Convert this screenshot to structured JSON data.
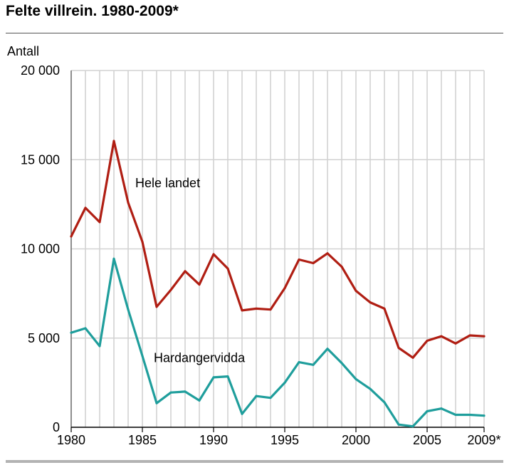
{
  "chart_data": {
    "type": "line",
    "title": "Felte villrein. 1980-2009*",
    "ylabel": "Antall",
    "xlabel": "",
    "ylim": [
      0,
      20000
    ],
    "xlim": [
      1980,
      2009
    ],
    "y_ticks": [
      {
        "value": 0,
        "label": "0"
      },
      {
        "value": 5000,
        "label": "5 000"
      },
      {
        "value": 10000,
        "label": "10 000"
      },
      {
        "value": 15000,
        "label": "15 000"
      },
      {
        "value": 20000,
        "label": "20 000"
      }
    ],
    "x_ticks": [
      {
        "value": 1980,
        "label": "1980"
      },
      {
        "value": 1985,
        "label": "1985"
      },
      {
        "value": 1990,
        "label": "1990"
      },
      {
        "value": 1995,
        "label": "1995"
      },
      {
        "value": 2000,
        "label": "2000"
      },
      {
        "value": 2005,
        "label": "2005"
      },
      {
        "value": 2009,
        "label": "2009*"
      }
    ],
    "grid": true,
    "x": [
      1980,
      1981,
      1982,
      1983,
      1984,
      1985,
      1986,
      1987,
      1988,
      1989,
      1990,
      1991,
      1992,
      1993,
      1994,
      1995,
      1996,
      1997,
      1998,
      1999,
      2000,
      2001,
      2002,
      2003,
      2004,
      2005,
      2006,
      2007,
      2008,
      2009
    ],
    "series": [
      {
        "name": "Hele landet",
        "color": "#b01e13",
        "label_at": {
          "x": 1984.5,
          "y": 13450
        },
        "values": [
          10700,
          12300,
          11500,
          16050,
          12600,
          10400,
          6750,
          7700,
          8750,
          8000,
          9700,
          8900,
          6550,
          6650,
          6600,
          7800,
          9400,
          9200,
          9750,
          9000,
          7650,
          7000,
          6650,
          4450,
          3900,
          4850,
          5100,
          4700,
          5150,
          5100
        ]
      },
      {
        "name": "Hardangervidda",
        "color": "#1f9e9c",
        "label_at": {
          "x": 1985.8,
          "y": 3650
        },
        "values": [
          5300,
          5550,
          4550,
          9450,
          6600,
          4000,
          1350,
          1950,
          2000,
          1500,
          2800,
          2850,
          750,
          1750,
          1650,
          2500,
          3650,
          3500,
          4400,
          3600,
          2700,
          2150,
          1400,
          150,
          50,
          900,
          1050,
          700,
          700,
          650
        ]
      }
    ]
  }
}
